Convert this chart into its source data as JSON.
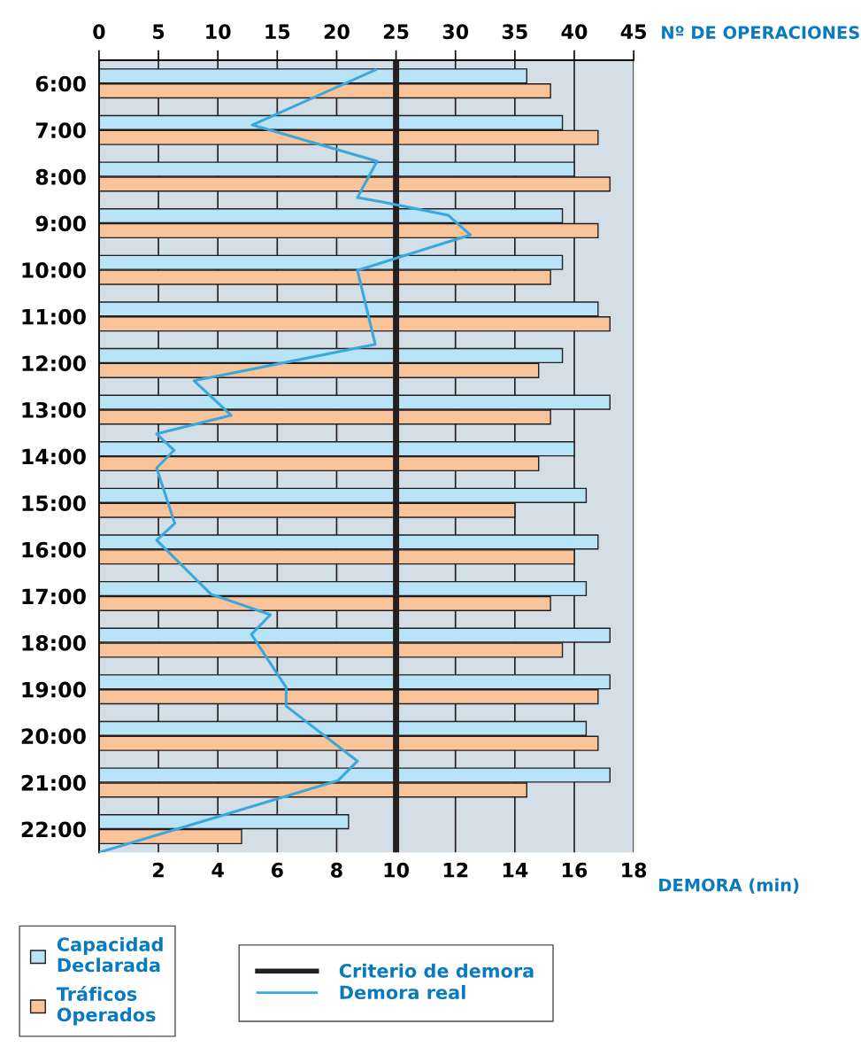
{
  "chart_data": {
    "type": "bar",
    "orientation": "horizontal",
    "x": [
      6,
      7,
      8,
      9,
      10,
      11,
      12,
      13,
      14,
      15,
      16,
      17,
      18,
      19,
      20,
      21,
      22
    ],
    "ylim": [
      22.5,
      5.5
    ],
    "yticks": [
      {
        "value": 6,
        "label": "6:00"
      },
      {
        "value": 7,
        "label": "7:00"
      },
      {
        "value": 8,
        "label": "8:00"
      },
      {
        "value": 9,
        "label": "9:00"
      },
      {
        "value": 10,
        "label": "10:00"
      },
      {
        "value": 11,
        "label": "11:00"
      },
      {
        "value": 12,
        "label": "12:00"
      },
      {
        "value": 13,
        "label": "13:00"
      },
      {
        "value": 14,
        "label": "14:00"
      },
      {
        "value": 15,
        "label": "15:00"
      },
      {
        "value": 16,
        "label": "16:00"
      },
      {
        "value": 17,
        "label": "17:00"
      },
      {
        "value": 18,
        "label": "18:00"
      },
      {
        "value": 19,
        "label": "19:00"
      },
      {
        "value": 20,
        "label": "20:00"
      },
      {
        "value": 21,
        "label": "21:00"
      },
      {
        "value": 22,
        "label": "22:00"
      }
    ],
    "x2label": "Nº DE OPERACIONES",
    "x2lim": [
      0,
      45
    ],
    "x2ticks": [
      0,
      5,
      10,
      15,
      20,
      25,
      30,
      35,
      40,
      45
    ],
    "xlabel": "DEMORA (min)",
    "xlim": [
      0,
      18
    ],
    "xticks": [
      2,
      4,
      6,
      8,
      10,
      12,
      14,
      16,
      18
    ],
    "grid": "x2",
    "legend": "bottom",
    "series": [
      {
        "name": "Capacidad Declarada",
        "color": "#b9e4f7",
        "axis": "x2",
        "values": [
          36,
          39,
          40,
          39,
          39,
          42,
          39,
          43,
          40,
          41,
          42,
          41,
          43,
          43,
          41,
          43,
          21
        ]
      },
      {
        "name": "Tráficos Operados",
        "color": "#f9c499",
        "axis": "x2",
        "values": [
          38,
          42,
          43,
          42,
          38,
          43,
          37,
          38,
          37,
          35,
          40,
          38,
          39,
          42,
          42,
          36,
          12
        ]
      },
      {
        "name": "Demora real",
        "type": "line",
        "color": "#3aa8dc",
        "x": [
          5.71,
          6.89,
          7.67,
          8.45,
          8.54,
          8.83,
          9.25,
          10.01,
          11.6,
          12.38,
          13.12,
          13.52,
          13.87,
          14.25,
          15.44,
          15.8,
          16.96,
          17.4,
          17.82,
          18.96,
          19.36,
          20.54,
          20.96,
          22.5
        ],
        "values": [
          9.3,
          5.16,
          9.36,
          8.7,
          9.5,
          11.76,
          12.5,
          8.7,
          9.3,
          3.2,
          4.45,
          1.94,
          2.53,
          1.94,
          2.55,
          1.94,
          3.77,
          5.77,
          5.13,
          6.3,
          6.3,
          8.7,
          8.04,
          0
        ]
      }
    ],
    "ref_lines": [
      {
        "axis": "x",
        "value": 10,
        "label": "Criterio de demora",
        "color": "#231f20"
      }
    ]
  }
}
